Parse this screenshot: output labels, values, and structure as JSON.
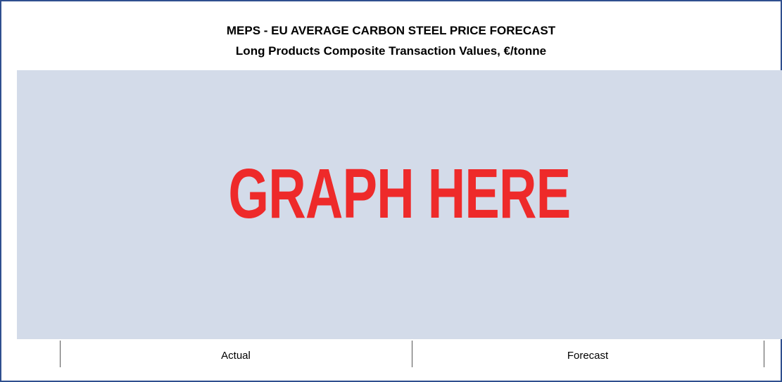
{
  "header": {
    "title": "MEPS - EU AVERAGE CARBON STEEL PRICE FORECAST",
    "subtitle": "Long Products Composite Transaction Values, €/tonne"
  },
  "placeholder": "GRAPH HERE",
  "columns": [
    "Actual",
    "Forecast"
  ]
}
